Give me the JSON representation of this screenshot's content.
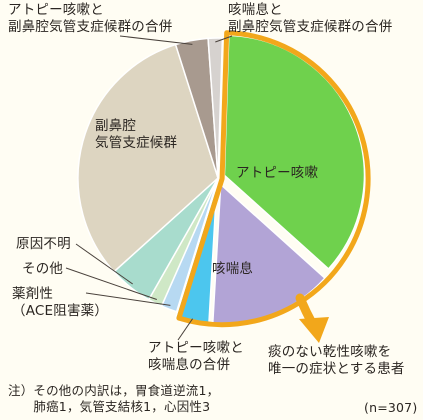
{
  "chart_data": {
    "type": "pie",
    "n_label": "(n=307)",
    "slices": [
      {
        "label": "アトピー咳嗽",
        "value": 35.5,
        "color": "#6fd14d",
        "label_inside": true,
        "highlight": true
      },
      {
        "label": "咳喘息",
        "value": 14.0,
        "color": "#b2a4d6",
        "label_inside": true,
        "highlight": true
      },
      {
        "label": "アトピー咳嗽と\n咳喘息の合併",
        "value": 3.8,
        "color": "#4cc6ee",
        "label_inside": false,
        "highlight": true
      },
      {
        "label": "薬剤性\n（ACE阻害薬）",
        "value": 1.8,
        "color": "#b7d9f2",
        "label_inside": false
      },
      {
        "label": "その他",
        "value": 1.6,
        "color": "#cfe8c6",
        "label_inside": false
      },
      {
        "label": "原因不明",
        "value": 5.0,
        "color": "#a8dccd",
        "label_inside": false
      },
      {
        "label": "副鼻腔\n気管支症候群",
        "value": 31.2,
        "color": "#ddd5c1",
        "label_inside": true
      },
      {
        "label": "アトピー咳嗽と\n副鼻腔気管支症候群の合併",
        "value": 3.7,
        "color": "#a89a8f",
        "label_inside": false
      },
      {
        "label": "咳喘息と\n副鼻腔気管支症候群の合併",
        "value": 1.6,
        "color": "#d6d2cf",
        "label_inside": false
      }
    ],
    "highlight_note": "痰のない乾性咳嗽を\n唯一の症状とする患者",
    "footnote": "注）その他の内訳は，胃食道逆流1，\n　　肺癌1，気管支結核1，心因性3"
  },
  "colors": {
    "highlight_outline": "#f2a71b",
    "slice_border": "#ffffff"
  }
}
